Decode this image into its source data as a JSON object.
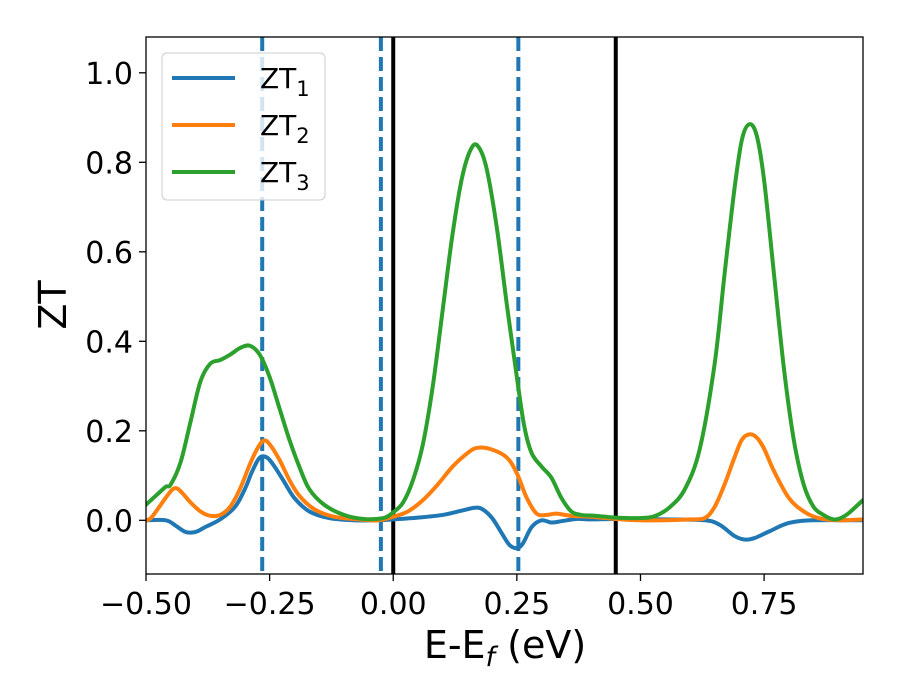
{
  "chart_data": {
    "type": "line",
    "title": "",
    "xlabel": "E-E",
    "xlabel_sub": "f",
    "xlabel_unit": " (eV)",
    "ylabel": "ZT",
    "xlim": [
      -0.5,
      0.95
    ],
    "ylim": [
      -0.12,
      1.08
    ],
    "xticks": [
      -0.5,
      -0.25,
      0.0,
      0.25,
      0.5,
      0.75
    ],
    "xtick_labels": [
      "−0.50",
      "−0.25",
      "0.00",
      "0.25",
      "0.50",
      "0.75"
    ],
    "yticks": [
      0.0,
      0.2,
      0.4,
      0.6,
      0.8,
      1.0
    ],
    "ytick_labels": [
      "0.0",
      "0.2",
      "0.4",
      "0.6",
      "0.8",
      "1.0"
    ],
    "grid": false,
    "legend_position": "top-left",
    "vlines": [
      {
        "x": -0.265,
        "style": "dashed",
        "color": "#1f77b4"
      },
      {
        "x": -0.025,
        "style": "dashed",
        "color": "#1f77b4"
      },
      {
        "x": 0.253,
        "style": "dashed",
        "color": "#1f77b4"
      },
      {
        "x": 0.0,
        "style": "solid",
        "color": "#000000"
      },
      {
        "x": 0.45,
        "style": "solid",
        "color": "#000000"
      }
    ],
    "series": [
      {
        "name": "ZT",
        "sub": "1",
        "color": "#1f77b4",
        "points": [
          [
            -0.5,
            0.0
          ],
          [
            -0.46,
            0.0
          ],
          [
            -0.44,
            -0.012
          ],
          [
            -0.42,
            -0.026
          ],
          [
            -0.4,
            -0.026
          ],
          [
            -0.38,
            -0.015
          ],
          [
            -0.35,
            0.002
          ],
          [
            -0.32,
            0.03
          ],
          [
            -0.3,
            0.07
          ],
          [
            -0.285,
            0.11
          ],
          [
            -0.27,
            0.14
          ],
          [
            -0.255,
            0.14
          ],
          [
            -0.24,
            0.12
          ],
          [
            -0.22,
            0.085
          ],
          [
            -0.2,
            0.05
          ],
          [
            -0.17,
            0.02
          ],
          [
            -0.13,
            0.005
          ],
          [
            -0.08,
            0.0
          ],
          [
            -0.03,
            0.0
          ],
          [
            0.0,
            0.002
          ],
          [
            0.05,
            0.006
          ],
          [
            0.1,
            0.012
          ],
          [
            0.14,
            0.022
          ],
          [
            0.165,
            0.028
          ],
          [
            0.18,
            0.025
          ],
          [
            0.2,
            0.005
          ],
          [
            0.22,
            -0.03
          ],
          [
            0.235,
            -0.055
          ],
          [
            0.25,
            -0.062
          ],
          [
            0.262,
            -0.052
          ],
          [
            0.28,
            -0.015
          ],
          [
            0.3,
            0.0
          ],
          [
            0.32,
            -0.005
          ],
          [
            0.34,
            -0.002
          ],
          [
            0.37,
            0.003
          ],
          [
            0.4,
            0.002
          ],
          [
            0.45,
            0.003
          ],
          [
            0.55,
            0.002
          ],
          [
            0.63,
            0.0
          ],
          [
            0.66,
            -0.01
          ],
          [
            0.69,
            -0.035
          ],
          [
            0.71,
            -0.043
          ],
          [
            0.73,
            -0.04
          ],
          [
            0.76,
            -0.025
          ],
          [
            0.8,
            -0.006
          ],
          [
            0.85,
            0.0
          ],
          [
            0.95,
            0.0
          ]
        ]
      },
      {
        "name": "ZT",
        "sub": "2",
        "color": "#ff7f0e",
        "points": [
          [
            -0.5,
            0.0
          ],
          [
            -0.49,
            0.005
          ],
          [
            -0.47,
            0.035
          ],
          [
            -0.45,
            0.065
          ],
          [
            -0.44,
            0.072
          ],
          [
            -0.43,
            0.065
          ],
          [
            -0.41,
            0.04
          ],
          [
            -0.39,
            0.02
          ],
          [
            -0.37,
            0.01
          ],
          [
            -0.35,
            0.012
          ],
          [
            -0.33,
            0.03
          ],
          [
            -0.31,
            0.07
          ],
          [
            -0.29,
            0.125
          ],
          [
            -0.275,
            0.16
          ],
          [
            -0.262,
            0.178
          ],
          [
            -0.25,
            0.17
          ],
          [
            -0.23,
            0.135
          ],
          [
            -0.21,
            0.09
          ],
          [
            -0.19,
            0.055
          ],
          [
            -0.16,
            0.025
          ],
          [
            -0.12,
            0.008
          ],
          [
            -0.07,
            0.002
          ],
          [
            -0.03,
            0.0
          ],
          [
            0.0,
            0.008
          ],
          [
            0.03,
            0.02
          ],
          [
            0.06,
            0.045
          ],
          [
            0.09,
            0.08
          ],
          [
            0.12,
            0.12
          ],
          [
            0.15,
            0.15
          ],
          [
            0.17,
            0.162
          ],
          [
            0.2,
            0.158
          ],
          [
            0.23,
            0.14
          ],
          [
            0.25,
            0.105
          ],
          [
            0.27,
            0.05
          ],
          [
            0.29,
            0.015
          ],
          [
            0.31,
            0.012
          ],
          [
            0.33,
            0.015
          ],
          [
            0.36,
            0.01
          ],
          [
            0.4,
            0.008
          ],
          [
            0.45,
            0.003
          ],
          [
            0.5,
            0.0
          ],
          [
            0.55,
            0.0
          ],
          [
            0.6,
            0.002
          ],
          [
            0.63,
            0.005
          ],
          [
            0.65,
            0.03
          ],
          [
            0.67,
            0.08
          ],
          [
            0.69,
            0.14
          ],
          [
            0.705,
            0.18
          ],
          [
            0.72,
            0.192
          ],
          [
            0.735,
            0.185
          ],
          [
            0.75,
            0.16
          ],
          [
            0.77,
            0.11
          ],
          [
            0.8,
            0.05
          ],
          [
            0.83,
            0.02
          ],
          [
            0.86,
            0.005
          ],
          [
            0.9,
            0.0
          ],
          [
            0.95,
            0.002
          ]
        ]
      },
      {
        "name": "ZT",
        "sub": "3",
        "color": "#2ca02c",
        "points": [
          [
            -0.5,
            0.035
          ],
          [
            -0.48,
            0.055
          ],
          [
            -0.46,
            0.075
          ],
          [
            -0.45,
            0.08
          ],
          [
            -0.43,
            0.13
          ],
          [
            -0.41,
            0.22
          ],
          [
            -0.39,
            0.31
          ],
          [
            -0.37,
            0.35
          ],
          [
            -0.35,
            0.358
          ],
          [
            -0.33,
            0.37
          ],
          [
            -0.31,
            0.385
          ],
          [
            -0.29,
            0.39
          ],
          [
            -0.27,
            0.37
          ],
          [
            -0.25,
            0.32
          ],
          [
            -0.23,
            0.25
          ],
          [
            -0.21,
            0.18
          ],
          [
            -0.19,
            0.12
          ],
          [
            -0.17,
            0.07
          ],
          [
            -0.14,
            0.035
          ],
          [
            -0.1,
            0.012
          ],
          [
            -0.06,
            0.003
          ],
          [
            -0.02,
            0.005
          ],
          [
            0.0,
            0.018
          ],
          [
            0.02,
            0.04
          ],
          [
            0.04,
            0.09
          ],
          [
            0.06,
            0.17
          ],
          [
            0.08,
            0.3
          ],
          [
            0.1,
            0.47
          ],
          [
            0.12,
            0.64
          ],
          [
            0.14,
            0.77
          ],
          [
            0.16,
            0.835
          ],
          [
            0.175,
            0.83
          ],
          [
            0.19,
            0.78
          ],
          [
            0.21,
            0.65
          ],
          [
            0.23,
            0.48
          ],
          [
            0.25,
            0.32
          ],
          [
            0.265,
            0.21
          ],
          [
            0.28,
            0.15
          ],
          [
            0.3,
            0.12
          ],
          [
            0.32,
            0.095
          ],
          [
            0.34,
            0.05
          ],
          [
            0.36,
            0.02
          ],
          [
            0.38,
            0.012
          ],
          [
            0.41,
            0.01
          ],
          [
            0.45,
            0.006
          ],
          [
            0.5,
            0.005
          ],
          [
            0.53,
            0.01
          ],
          [
            0.56,
            0.03
          ],
          [
            0.59,
            0.07
          ],
          [
            0.62,
            0.16
          ],
          [
            0.65,
            0.35
          ],
          [
            0.67,
            0.55
          ],
          [
            0.69,
            0.74
          ],
          [
            0.705,
            0.85
          ],
          [
            0.72,
            0.885
          ],
          [
            0.735,
            0.86
          ],
          [
            0.75,
            0.76
          ],
          [
            0.77,
            0.55
          ],
          [
            0.79,
            0.34
          ],
          [
            0.81,
            0.18
          ],
          [
            0.83,
            0.08
          ],
          [
            0.85,
            0.03
          ],
          [
            0.87,
            0.012
          ],
          [
            0.89,
            0.002
          ],
          [
            0.905,
            0.005
          ],
          [
            0.92,
            0.015
          ],
          [
            0.95,
            0.045
          ]
        ]
      }
    ]
  }
}
